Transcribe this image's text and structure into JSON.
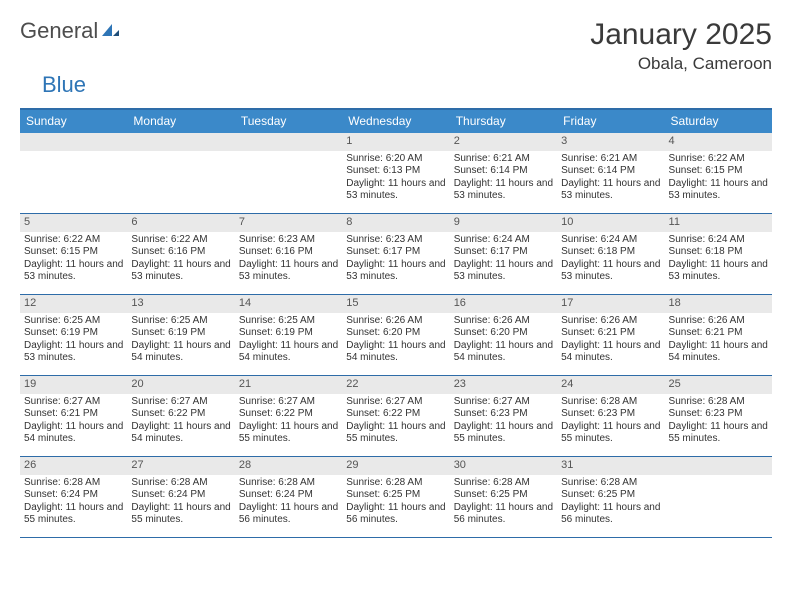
{
  "logo": {
    "part1": "General",
    "part2": "Blue"
  },
  "title": "January 2025",
  "location": "Obala, Cameroon",
  "colors": {
    "header_bar": "#3b89c9",
    "border": "#2e6ca8",
    "daynum_bg": "#e9e9e9",
    "text": "#333333",
    "logo_gray": "#4d4d4d",
    "logo_blue": "#2e75b6"
  },
  "weekdays": [
    "Sunday",
    "Monday",
    "Tuesday",
    "Wednesday",
    "Thursday",
    "Friday",
    "Saturday"
  ],
  "weeks": [
    [
      {
        "day": "",
        "sunrise": "",
        "sunset": "",
        "daylight": ""
      },
      {
        "day": "",
        "sunrise": "",
        "sunset": "",
        "daylight": ""
      },
      {
        "day": "",
        "sunrise": "",
        "sunset": "",
        "daylight": ""
      },
      {
        "day": "1",
        "sunrise": "Sunrise: 6:20 AM",
        "sunset": "Sunset: 6:13 PM",
        "daylight": "Daylight: 11 hours and 53 minutes."
      },
      {
        "day": "2",
        "sunrise": "Sunrise: 6:21 AM",
        "sunset": "Sunset: 6:14 PM",
        "daylight": "Daylight: 11 hours and 53 minutes."
      },
      {
        "day": "3",
        "sunrise": "Sunrise: 6:21 AM",
        "sunset": "Sunset: 6:14 PM",
        "daylight": "Daylight: 11 hours and 53 minutes."
      },
      {
        "day": "4",
        "sunrise": "Sunrise: 6:22 AM",
        "sunset": "Sunset: 6:15 PM",
        "daylight": "Daylight: 11 hours and 53 minutes."
      }
    ],
    [
      {
        "day": "5",
        "sunrise": "Sunrise: 6:22 AM",
        "sunset": "Sunset: 6:15 PM",
        "daylight": "Daylight: 11 hours and 53 minutes."
      },
      {
        "day": "6",
        "sunrise": "Sunrise: 6:22 AM",
        "sunset": "Sunset: 6:16 PM",
        "daylight": "Daylight: 11 hours and 53 minutes."
      },
      {
        "day": "7",
        "sunrise": "Sunrise: 6:23 AM",
        "sunset": "Sunset: 6:16 PM",
        "daylight": "Daylight: 11 hours and 53 minutes."
      },
      {
        "day": "8",
        "sunrise": "Sunrise: 6:23 AM",
        "sunset": "Sunset: 6:17 PM",
        "daylight": "Daylight: 11 hours and 53 minutes."
      },
      {
        "day": "9",
        "sunrise": "Sunrise: 6:24 AM",
        "sunset": "Sunset: 6:17 PM",
        "daylight": "Daylight: 11 hours and 53 minutes."
      },
      {
        "day": "10",
        "sunrise": "Sunrise: 6:24 AM",
        "sunset": "Sunset: 6:18 PM",
        "daylight": "Daylight: 11 hours and 53 minutes."
      },
      {
        "day": "11",
        "sunrise": "Sunrise: 6:24 AM",
        "sunset": "Sunset: 6:18 PM",
        "daylight": "Daylight: 11 hours and 53 minutes."
      }
    ],
    [
      {
        "day": "12",
        "sunrise": "Sunrise: 6:25 AM",
        "sunset": "Sunset: 6:19 PM",
        "daylight": "Daylight: 11 hours and 53 minutes."
      },
      {
        "day": "13",
        "sunrise": "Sunrise: 6:25 AM",
        "sunset": "Sunset: 6:19 PM",
        "daylight": "Daylight: 11 hours and 54 minutes."
      },
      {
        "day": "14",
        "sunrise": "Sunrise: 6:25 AM",
        "sunset": "Sunset: 6:19 PM",
        "daylight": "Daylight: 11 hours and 54 minutes."
      },
      {
        "day": "15",
        "sunrise": "Sunrise: 6:26 AM",
        "sunset": "Sunset: 6:20 PM",
        "daylight": "Daylight: 11 hours and 54 minutes."
      },
      {
        "day": "16",
        "sunrise": "Sunrise: 6:26 AM",
        "sunset": "Sunset: 6:20 PM",
        "daylight": "Daylight: 11 hours and 54 minutes."
      },
      {
        "day": "17",
        "sunrise": "Sunrise: 6:26 AM",
        "sunset": "Sunset: 6:21 PM",
        "daylight": "Daylight: 11 hours and 54 minutes."
      },
      {
        "day": "18",
        "sunrise": "Sunrise: 6:26 AM",
        "sunset": "Sunset: 6:21 PM",
        "daylight": "Daylight: 11 hours and 54 minutes."
      }
    ],
    [
      {
        "day": "19",
        "sunrise": "Sunrise: 6:27 AM",
        "sunset": "Sunset: 6:21 PM",
        "daylight": "Daylight: 11 hours and 54 minutes."
      },
      {
        "day": "20",
        "sunrise": "Sunrise: 6:27 AM",
        "sunset": "Sunset: 6:22 PM",
        "daylight": "Daylight: 11 hours and 54 minutes."
      },
      {
        "day": "21",
        "sunrise": "Sunrise: 6:27 AM",
        "sunset": "Sunset: 6:22 PM",
        "daylight": "Daylight: 11 hours and 55 minutes."
      },
      {
        "day": "22",
        "sunrise": "Sunrise: 6:27 AM",
        "sunset": "Sunset: 6:22 PM",
        "daylight": "Daylight: 11 hours and 55 minutes."
      },
      {
        "day": "23",
        "sunrise": "Sunrise: 6:27 AM",
        "sunset": "Sunset: 6:23 PM",
        "daylight": "Daylight: 11 hours and 55 minutes."
      },
      {
        "day": "24",
        "sunrise": "Sunrise: 6:28 AM",
        "sunset": "Sunset: 6:23 PM",
        "daylight": "Daylight: 11 hours and 55 minutes."
      },
      {
        "day": "25",
        "sunrise": "Sunrise: 6:28 AM",
        "sunset": "Sunset: 6:23 PM",
        "daylight": "Daylight: 11 hours and 55 minutes."
      }
    ],
    [
      {
        "day": "26",
        "sunrise": "Sunrise: 6:28 AM",
        "sunset": "Sunset: 6:24 PM",
        "daylight": "Daylight: 11 hours and 55 minutes."
      },
      {
        "day": "27",
        "sunrise": "Sunrise: 6:28 AM",
        "sunset": "Sunset: 6:24 PM",
        "daylight": "Daylight: 11 hours and 55 minutes."
      },
      {
        "day": "28",
        "sunrise": "Sunrise: 6:28 AM",
        "sunset": "Sunset: 6:24 PM",
        "daylight": "Daylight: 11 hours and 56 minutes."
      },
      {
        "day": "29",
        "sunrise": "Sunrise: 6:28 AM",
        "sunset": "Sunset: 6:25 PM",
        "daylight": "Daylight: 11 hours and 56 minutes."
      },
      {
        "day": "30",
        "sunrise": "Sunrise: 6:28 AM",
        "sunset": "Sunset: 6:25 PM",
        "daylight": "Daylight: 11 hours and 56 minutes."
      },
      {
        "day": "31",
        "sunrise": "Sunrise: 6:28 AM",
        "sunset": "Sunset: 6:25 PM",
        "daylight": "Daylight: 11 hours and 56 minutes."
      },
      {
        "day": "",
        "sunrise": "",
        "sunset": "",
        "daylight": ""
      }
    ]
  ]
}
